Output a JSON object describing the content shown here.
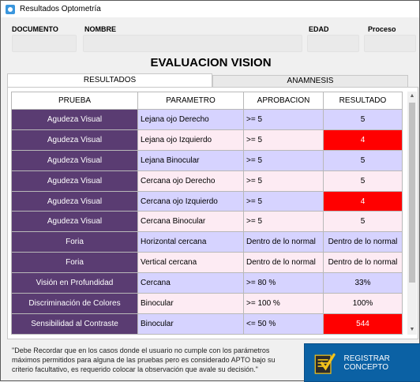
{
  "window": {
    "title": "Resultados Optometría"
  },
  "header": {
    "documento_label": "DOCUMENTO",
    "nombre_label": "NOMBRE",
    "edad_label": "EDAD",
    "proceso_label": "Proceso"
  },
  "main_title": "EVALUACION VISION",
  "tabs": {
    "resultados": "RESULTADOS",
    "anamnesis": "ANAMNESIS"
  },
  "table": {
    "headers": [
      "PRUEBA",
      "PARAMETRO",
      "APROBACION",
      "RESULTADO"
    ],
    "rows": [
      {
        "prueba": "Agudeza Visual",
        "parametro": "Lejana ojo Derecho",
        "aprobacion": ">= 5",
        "resultado": "5",
        "fail": false
      },
      {
        "prueba": "Agudeza Visual",
        "parametro": "Lejana ojo Izquierdo",
        "aprobacion": ">= 5",
        "resultado": "4",
        "fail": true
      },
      {
        "prueba": "Agudeza Visual",
        "parametro": "Lejana Binocular",
        "aprobacion": ">= 5",
        "resultado": "5",
        "fail": false
      },
      {
        "prueba": "Agudeza Visual",
        "parametro": "Cercana ojo Derecho",
        "aprobacion": ">= 5",
        "resultado": "5",
        "fail": false
      },
      {
        "prueba": "Agudeza Visual",
        "parametro": "Cercana ojo Izquierdo",
        "aprobacion": ">= 5",
        "resultado": "4",
        "fail": true
      },
      {
        "prueba": "Agudeza Visual",
        "parametro": "Cercana Binocular",
        "aprobacion": ">= 5",
        "resultado": "5",
        "fail": false
      },
      {
        "prueba": "Foria",
        "parametro": "Horizontal cercana",
        "aprobacion": "Dentro de lo normal",
        "resultado": "Dentro de lo normal",
        "fail": false
      },
      {
        "prueba": "Foria",
        "parametro": "Vertical cercana",
        "aprobacion": "Dentro de lo normal",
        "resultado": "Dentro de lo normal",
        "fail": false
      },
      {
        "prueba": "Visión en Profundidad",
        "parametro": "Cercana",
        "aprobacion": ">= 80 %",
        "resultado": "33%",
        "fail": false
      },
      {
        "prueba": "Discriminación de Colores",
        "parametro": "Binocular",
        "aprobacion": ">= 100 %",
        "resultado": "100%",
        "fail": false
      },
      {
        "prueba": "Sensibilidad al Contraste",
        "parametro": "Binocular",
        "aprobacion": "<= 50 %",
        "resultado": "544",
        "fail": true
      }
    ]
  },
  "footer": {
    "note": "\"Debe Recordar que en los casos donde el usuario no cumple con los parámetros máximos permitidos para alguna de las pruebas pero es considerado APTO bajo su criterio facultativo, es requerido colocar la observación que avale su decisión.\"",
    "register_label": "REGISTRAR CONCEPTO"
  },
  "colors": {
    "prueba_bg": "#5a3c72",
    "row_odd": "#d6d3ff",
    "row_even": "#fdebf3",
    "fail": "#ff0000",
    "register_bg": "#0b61a4"
  },
  "icons": {
    "app": "app-icon",
    "register": "check-note-icon"
  }
}
